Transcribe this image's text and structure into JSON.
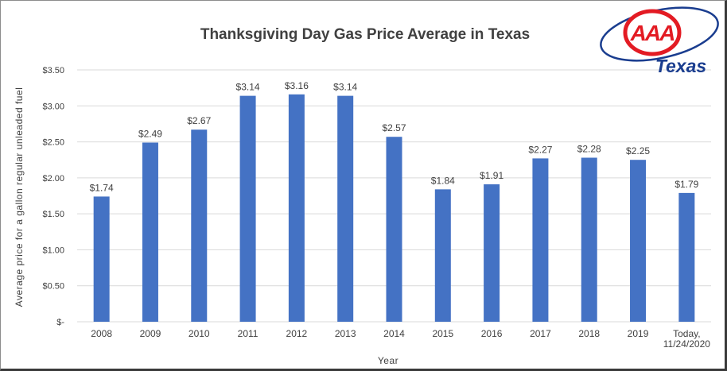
{
  "chart_data": {
    "type": "bar",
    "title": "Thanksgiving Day Gas Price Average in Texas",
    "xlabel": "Year",
    "ylabel": "Average price for a gallon regular unleaded fuel",
    "categories": [
      "2008",
      "2009",
      "2010",
      "2011",
      "2012",
      "2013",
      "2014",
      "2015",
      "2016",
      "2017",
      "2018",
      "2019",
      [
        "Today,",
        "11/24/2020"
      ]
    ],
    "values": [
      1.74,
      2.49,
      2.67,
      3.14,
      3.16,
      3.14,
      2.57,
      1.84,
      1.91,
      2.27,
      2.28,
      2.25,
      1.79
    ],
    "data_labels": [
      "$1.74",
      "$2.49",
      "$2.67",
      "$3.14",
      "$3.16",
      "$3.14",
      "$2.57",
      "$1.84",
      "$1.91",
      "$2.27",
      "$2.28",
      "$2.25",
      "$1.79"
    ],
    "yticks": [
      0,
      0.5,
      1.0,
      1.5,
      2.0,
      2.5,
      3.0,
      3.5
    ],
    "ytick_labels": [
      "$-",
      "$0.50",
      "$1.00",
      "$1.50",
      "$2.00",
      "$2.50",
      "$3.00",
      "$3.50"
    ],
    "ylim": [
      0,
      3.5
    ],
    "grid": true,
    "bar_color": "#4472c4",
    "grid_color": "#d9d9d9"
  },
  "logo": {
    "text": "AAA",
    "subtext": "Texas",
    "red": "#e31b23",
    "blue": "#1a3d8f"
  }
}
